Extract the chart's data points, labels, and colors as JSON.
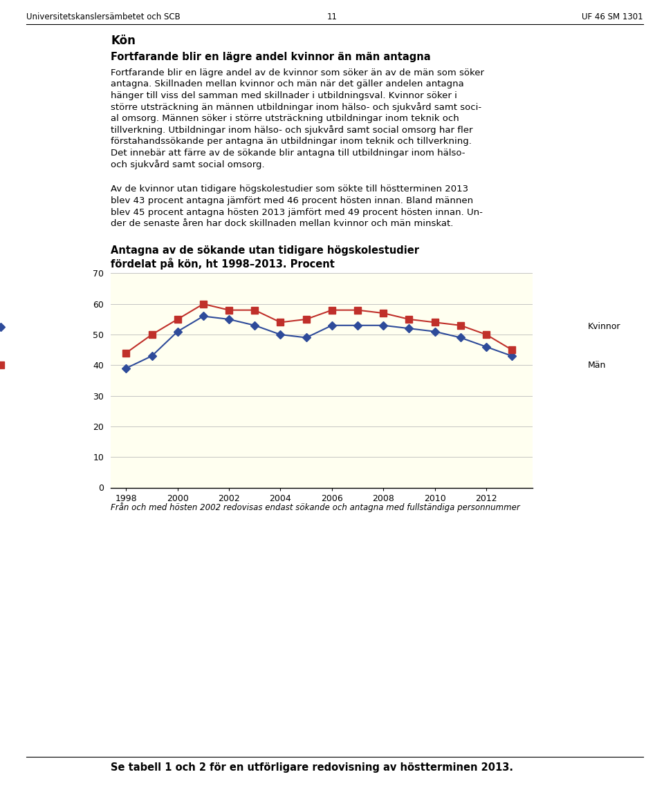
{
  "years": [
    1998,
    1999,
    2000,
    2001,
    2002,
    2003,
    2004,
    2005,
    2006,
    2007,
    2008,
    2009,
    2010,
    2011,
    2012,
    2013
  ],
  "kvinnor": [
    39,
    43,
    51,
    56,
    55,
    53,
    50,
    49,
    53,
    53,
    53,
    52,
    51,
    49,
    46,
    43
  ],
  "man": [
    44,
    50,
    55,
    60,
    58,
    58,
    54,
    55,
    58,
    58,
    57,
    55,
    54,
    53,
    50,
    45
  ],
  "kvinnor_color": "#2E4B9A",
  "man_color": "#C0302A",
  "chart_bg": "#FFFFF0",
  "page_bg": "#FFFFFF",
  "ylim": [
    0,
    70
  ],
  "yticks": [
    0,
    10,
    20,
    30,
    40,
    50,
    60,
    70
  ],
  "xticks": [
    1998,
    2000,
    2002,
    2004,
    2006,
    2008,
    2010,
    2012
  ],
  "title_line1": "Antagna av de sökande utan tidigare högskolestudier",
  "title_line2": "fördelat på kön, ht 1998–2013. Procent",
  "legend_kvinnor": "Kvinnor",
  "legend_man": "Män",
  "header_left": "Universitetskanslersämbetet och SCB",
  "header_center": "11",
  "header_right": "UF 46 SM 1301",
  "section_title": "Kön",
  "bold_title": "Fortfarande blir en lägre andel kvinnor än män antagna",
  "footnote": "Från och med hösten 2002 redovisas endast sökande och antagna med fullständiga personnummer",
  "footer": "Se tabell 1 och 2 för en utförligare redovisning av höstterminen 2013."
}
